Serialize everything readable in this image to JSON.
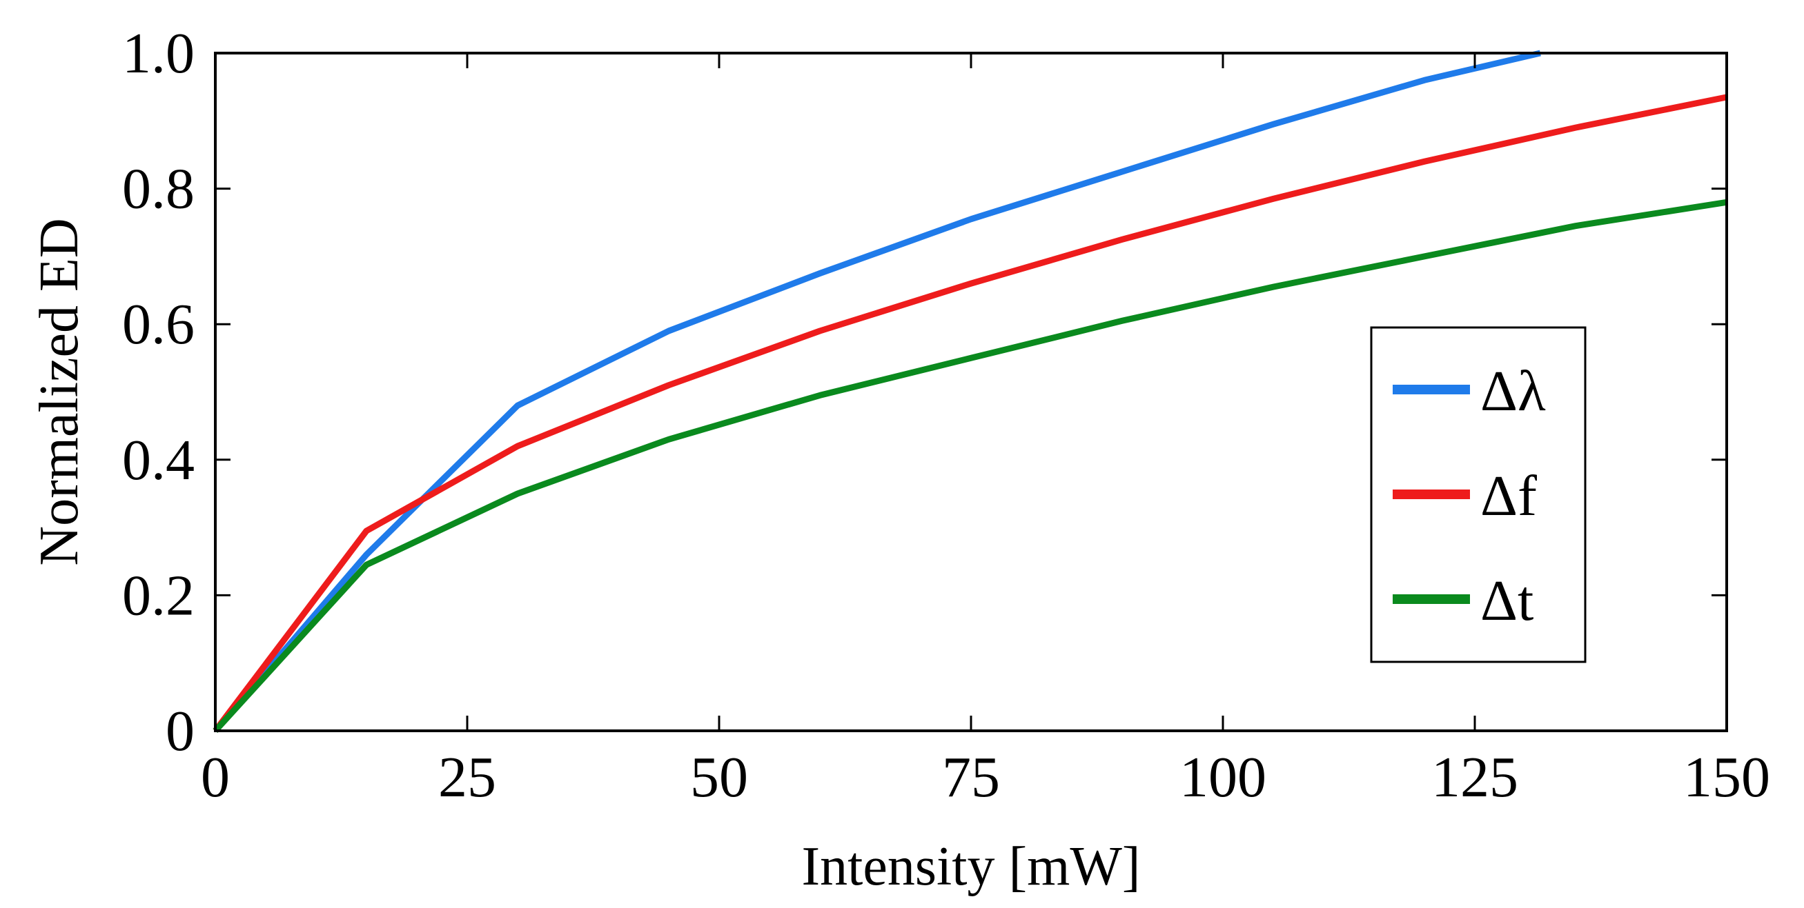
{
  "chart_data": {
    "type": "line",
    "title": "",
    "xlabel": "Intensity [mW]",
    "ylabel": "Normalized ED",
    "xlim": [
      0,
      150
    ],
    "ylim": [
      0,
      1.0
    ],
    "xticks": [
      0,
      25,
      50,
      75,
      100,
      125,
      150
    ],
    "xtick_labels": [
      "0",
      "25",
      "50",
      "75",
      "100",
      "125",
      "150"
    ],
    "yticks": [
      0,
      0.2,
      0.4,
      0.6,
      0.8,
      1.0
    ],
    "ytick_labels": [
      "0",
      "0.2",
      "0.4",
      "0.6",
      "0.8",
      "1.0"
    ],
    "grid": false,
    "legend_position": "right",
    "series": [
      {
        "name": "Δλ",
        "color": "#1f7bea",
        "x": [
          0,
          15,
          30,
          45,
          60,
          75,
          90,
          105,
          120,
          131.5
        ],
        "y": [
          0,
          0.26,
          0.48,
          0.59,
          0.675,
          0.755,
          0.825,
          0.895,
          0.96,
          1.0
        ]
      },
      {
        "name": "Δf",
        "color": "#ee1c1c",
        "x": [
          0,
          15,
          30,
          45,
          60,
          75,
          90,
          105,
          120,
          135,
          150
        ],
        "y": [
          0,
          0.295,
          0.42,
          0.51,
          0.59,
          0.66,
          0.725,
          0.785,
          0.84,
          0.89,
          0.935
        ]
      },
      {
        "name": "Δt",
        "color": "#0a8a1e",
        "x": [
          0,
          15,
          30,
          45,
          60,
          75,
          90,
          105,
          120,
          135,
          150
        ],
        "y": [
          0,
          0.245,
          0.35,
          0.43,
          0.495,
          0.55,
          0.605,
          0.655,
          0.7,
          0.745,
          0.78
        ]
      }
    ]
  }
}
